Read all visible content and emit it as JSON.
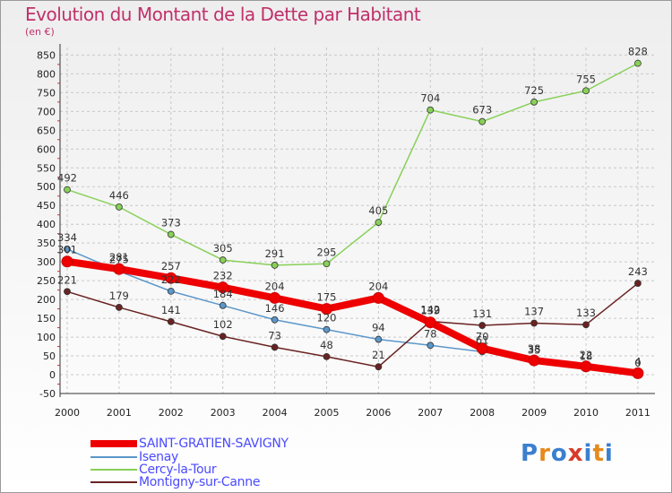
{
  "header": {
    "title": "Evolution du Montant de la Dette par Habitant",
    "unit": "(en €)"
  },
  "colors": {
    "title": "#c0306a",
    "axis": "#222222",
    "legend_text": "#4a4aff",
    "value_label": "#333333"
  },
  "chart_data": {
    "type": "line",
    "title": "Evolution du Montant de la Dette par Habitant",
    "subtitle": "(en €)",
    "x": [
      "2000",
      "2001",
      "2002",
      "2003",
      "2004",
      "2005",
      "2006",
      "2007",
      "2008",
      "2009",
      "2010",
      "2011"
    ],
    "y_ticks": [
      -50,
      0,
      50,
      100,
      150,
      200,
      250,
      300,
      350,
      400,
      450,
      500,
      550,
      600,
      650,
      700,
      750,
      800,
      850
    ],
    "ylim": [
      -50,
      870
    ],
    "grid": true,
    "legend_position": "bottom-left",
    "series": [
      {
        "name": "SAINT-GRATIEN-SAVIGNY",
        "color": "#ee0000",
        "emphasis": true,
        "values": [
          301,
          281,
          257,
          232,
          204,
          175,
          204,
          139,
          70,
          38,
          22,
          4
        ],
        "labels": [
          "301",
          "281",
          "257",
          "232",
          "204",
          "175",
          "204",
          "139",
          "70",
          "38",
          "22",
          "4"
        ]
      },
      {
        "name": "Isenay",
        "color": "#5b97c9",
        "emphasis": false,
        "values": [
          334,
          275,
          222,
          184,
          146,
          120,
          94,
          78,
          61,
          35,
          18,
          0
        ],
        "labels": [
          "334",
          "275",
          "222",
          "184",
          "146",
          "120",
          "94",
          "78",
          "61",
          "35",
          "18",
          "0"
        ]
      },
      {
        "name": "Cercy-la-Tour",
        "color": "#88d058",
        "emphasis": false,
        "values": [
          492,
          446,
          373,
          305,
          291,
          295,
          405,
          704,
          673,
          725,
          755,
          828
        ],
        "labels": [
          "492",
          "446",
          "373",
          "305",
          "291",
          "295",
          "405",
          "704",
          "673",
          "725",
          "755",
          "828"
        ]
      },
      {
        "name": "Montigny-sur-Canne",
        "color": "#6a2222",
        "emphasis": false,
        "values": [
          221,
          179,
          141,
          102,
          73,
          48,
          21,
          142,
          131,
          137,
          133,
          243
        ],
        "labels": [
          "221",
          "179",
          "141",
          "102",
          "73",
          "48",
          "21",
          "142",
          "131",
          "137",
          "133",
          "243"
        ]
      }
    ]
  },
  "logo": {
    "text": "Proxiti",
    "letters": [
      "P",
      "r",
      "o",
      "x",
      "i",
      "t",
      "i"
    ],
    "letter_colors": [
      "#3a7fd0",
      "#e58a1c",
      "#3a7fd0",
      "#d83a2a",
      "#3a7fd0",
      "#e58a1c",
      "#3a7fd0"
    ]
  }
}
